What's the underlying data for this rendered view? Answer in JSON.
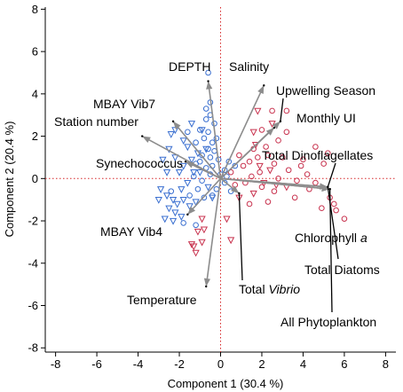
{
  "chart_data": {
    "type": "scatter",
    "title": "",
    "xlabel": "Component 1  (30.4 %)",
    "ylabel": "Component 2  (20.4 %)",
    "xlim": [
      -8.5,
      8.5
    ],
    "ylim": [
      -8.2,
      8.1
    ],
    "xticks": [
      -8,
      -6,
      -4,
      -2,
      0,
      2,
      4,
      6,
      8
    ],
    "yticks": [
      -8,
      -6,
      -4,
      -2,
      0,
      2,
      4,
      6,
      8
    ],
    "grid": false,
    "reference_lines": {
      "x": 0,
      "y": 0,
      "color": "#d62728"
    },
    "colors": {
      "blue": "#3a6fd0",
      "red": "#c8324e",
      "loading": "#8c8c8c"
    },
    "loadings": [
      {
        "name": "DEPTH",
        "x": -0.6,
        "y": 4.6
      },
      {
        "name": "Salinity",
        "x": 2.1,
        "y": 4.4
      },
      {
        "name": "Upwelling Season",
        "x": 2.9,
        "y": 2.7
      },
      {
        "name": "Monthly UI",
        "x": 2.6,
        "y": 2.4
      },
      {
        "name": "MBAY Vib7",
        "x": -2.3,
        "y": 2.7
      },
      {
        "name": "Station number",
        "x": -3.8,
        "y": 2.0
      },
      {
        "name": "Synechococcus",
        "x": -1.7,
        "y": 0.8
      },
      {
        "name": "Total Dinoflagellates",
        "x": 5.2,
        "y": -0.4
      },
      {
        "name": "Chlorophyll a",
        "x": 5.3,
        "y": -0.5
      },
      {
        "name": "Total Diatoms",
        "x": 5.2,
        "y": -0.4
      },
      {
        "name": "All Phytoplankton",
        "x": 5.3,
        "y": -0.5
      },
      {
        "name": "MBAY Vib4",
        "x": -1.6,
        "y": -1.7
      },
      {
        "name": "Total Vibrio",
        "x": 0.9,
        "y": -0.7
      },
      {
        "name": "Temperature",
        "x": -0.7,
        "y": -5.1
      }
    ],
    "series": [
      {
        "marker": "triangle-down",
        "color": "blue",
        "points": [
          [
            -2.2,
            2.3
          ],
          [
            -2.4,
            2.1
          ],
          [
            -1.8,
            1.8
          ],
          [
            -2.5,
            1.4
          ],
          [
            -1.6,
            1.5
          ],
          [
            -2.2,
            1.0
          ],
          [
            -1.4,
            0.9
          ],
          [
            -1.8,
            0.6
          ],
          [
            -2.6,
            0.3
          ],
          [
            -2.9,
            -0.5
          ],
          [
            -2.6,
            -0.8
          ],
          [
            -2.3,
            -1.0
          ],
          [
            -2.1,
            -1.2
          ],
          [
            -2.5,
            -1.4
          ],
          [
            -2.2,
            -1.6
          ],
          [
            -1.9,
            -1.8
          ],
          [
            -2.3,
            -2.0
          ],
          [
            -1.8,
            -1.0
          ],
          [
            -1.5,
            -1.3
          ],
          [
            -1.2,
            -1.1
          ],
          [
            -1.9,
            -0.5
          ],
          [
            -1.6,
            -0.2
          ],
          [
            -1.3,
            0.3
          ],
          [
            -2.0,
            0.3
          ],
          [
            -1.1,
            1.2
          ],
          [
            -0.7,
            1.4
          ],
          [
            -0.9,
            2.3
          ],
          [
            -1.4,
            2.6
          ],
          [
            -3.0,
            -1.0
          ],
          [
            -2.7,
            -1.9
          ],
          [
            -0.4,
            -0.9
          ],
          [
            -0.6,
            -0.4
          ],
          [
            -2.8,
            0.9
          ],
          [
            -1.0,
            0.3
          ]
        ]
      },
      {
        "marker": "circle",
        "color": "blue",
        "points": [
          [
            -0.6,
            5.0
          ],
          [
            -0.5,
            3.6
          ],
          [
            -0.7,
            3.3
          ],
          [
            -0.5,
            3.0
          ],
          [
            -0.7,
            2.8
          ],
          [
            -0.3,
            2.6
          ],
          [
            -1.0,
            2.3
          ],
          [
            -0.6,
            2.2
          ],
          [
            -0.8,
            1.9
          ],
          [
            -1.2,
            1.7
          ],
          [
            -0.4,
            1.7
          ],
          [
            -0.6,
            1.4
          ],
          [
            -0.3,
            1.3
          ],
          [
            -0.9,
            1.1
          ],
          [
            -0.5,
            1.0
          ],
          [
            -1.2,
            0.7
          ],
          [
            -0.4,
            0.6
          ],
          [
            -0.7,
            0.5
          ],
          [
            -1.3,
            0.1
          ],
          [
            -0.5,
            0.2
          ],
          [
            -0.9,
            -0.1
          ],
          [
            -1.1,
            -0.5
          ],
          [
            -0.4,
            -0.8
          ],
          [
            -0.2,
            -0.5
          ],
          [
            0.2,
            0.4
          ],
          [
            0.4,
            0.8
          ],
          [
            0.7,
            0.6
          ],
          [
            0.5,
            -0.6
          ],
          [
            -1.6,
            2.2
          ],
          [
            -0.2,
            1.9
          ],
          [
            -0.1,
            0.9
          ],
          [
            0.2,
            -0.2
          ],
          [
            -2.4,
            -0.6
          ],
          [
            -1.5,
            -0.8
          ],
          [
            -1.8,
            -2.1
          ],
          [
            -1.2,
            -2.2
          ],
          [
            0.0,
            0.2
          ],
          [
            0.3,
            0.1
          ],
          [
            -1.0,
            0.8
          ],
          [
            -0.8,
            -0.9
          ]
        ]
      },
      {
        "marker": "triangle-down",
        "color": "red",
        "points": [
          [
            1.8,
            3.2
          ],
          [
            2.5,
            2.6
          ],
          [
            1.6,
            2.2
          ],
          [
            1.7,
            1.6
          ],
          [
            -0.9,
            -1.9
          ],
          [
            -1.1,
            -2.5
          ],
          [
            -1.4,
            -3.1
          ],
          [
            -1.2,
            -3.5
          ],
          [
            -0.8,
            -2.4
          ],
          [
            0.3,
            -1.9
          ],
          [
            0.5,
            -2.9
          ],
          [
            1.9,
            0.6
          ],
          [
            2.4,
            0.4
          ],
          [
            2.1,
            -0.2
          ],
          [
            1.6,
            -0.7
          ],
          [
            0.9,
            -0.9
          ],
          [
            2.7,
            -0.3
          ],
          [
            3.2,
            -0.4
          ],
          [
            -1.3,
            -3.2
          ],
          [
            -0.9,
            -3.0
          ]
        ]
      },
      {
        "marker": "circle",
        "color": "red",
        "points": [
          [
            2.5,
            3.2
          ],
          [
            3.2,
            3.2
          ],
          [
            2.0,
            2.3
          ],
          [
            3.2,
            2.2
          ],
          [
            2.8,
            1.8
          ],
          [
            2.2,
            1.5
          ],
          [
            4.6,
            1.5
          ],
          [
            5.2,
            1.2
          ],
          [
            2.3,
            1.1
          ],
          [
            1.8,
            1.0
          ],
          [
            3.0,
            1.0
          ],
          [
            4.0,
            0.9
          ],
          [
            5.0,
            0.7
          ],
          [
            1.4,
            0.8
          ],
          [
            2.6,
            0.7
          ],
          [
            1.1,
            0.6
          ],
          [
            3.3,
            0.4
          ],
          [
            1.9,
            0.3
          ],
          [
            4.2,
            0.2
          ],
          [
            1.5,
            0.1
          ],
          [
            2.8,
            0.0
          ],
          [
            3.7,
            -0.1
          ],
          [
            1.2,
            -0.2
          ],
          [
            2.0,
            -0.4
          ],
          [
            4.3,
            -0.5
          ],
          [
            2.6,
            -0.6
          ],
          [
            5.3,
            -0.9
          ],
          [
            5.5,
            -1.2
          ],
          [
            5.6,
            -1.5
          ],
          [
            6.0,
            -1.9
          ],
          [
            4.9,
            -1.4
          ],
          [
            3.6,
            -0.9
          ],
          [
            1.4,
            -1.2
          ],
          [
            0.7,
            -0.3
          ],
          [
            0.5,
            0.3
          ],
          [
            0.9,
            1.1
          ],
          [
            1.6,
            1.4
          ],
          [
            3.9,
            0.6
          ],
          [
            4.6,
            -0.2
          ],
          [
            2.3,
            -1.1
          ]
        ]
      }
    ]
  }
}
